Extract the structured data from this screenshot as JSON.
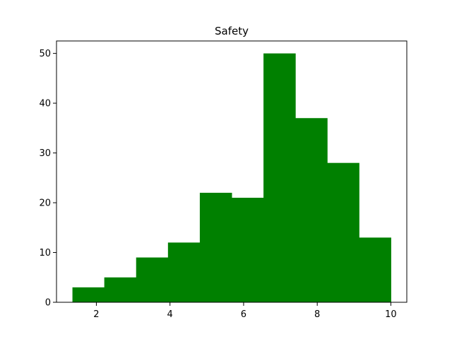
{
  "chart_data": {
    "type": "bar",
    "title": "Safety",
    "xlabel": "",
    "ylabel": "",
    "bin_edges": [
      1.35,
      2.215,
      3.08,
      3.945,
      4.81,
      5.675,
      6.54,
      7.405,
      8.27,
      9.135,
      10.0
    ],
    "values": [
      3,
      5,
      9,
      12,
      22,
      21,
      50,
      37,
      28,
      13
    ],
    "xlim": [
      0.917,
      10.433
    ],
    "ylim": [
      0,
      52.5
    ],
    "xticks": [
      2,
      4,
      6,
      8,
      10
    ],
    "yticks": [
      0,
      10,
      20,
      30,
      40,
      50
    ],
    "grid": false,
    "bar_color": "#008000"
  }
}
